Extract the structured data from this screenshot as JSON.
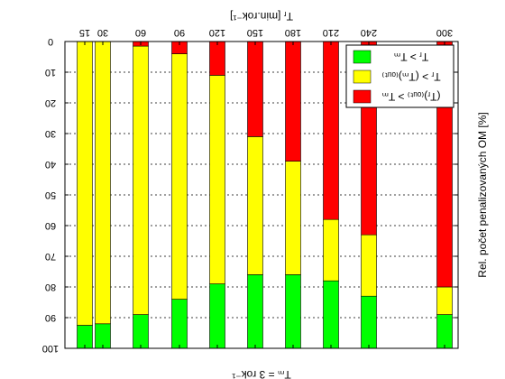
{
  "chart_data": {
    "type": "bar",
    "orientation": "vertical-stacked",
    "mirrored": true,
    "y_inverted": true,
    "grid": "horizontal-dashed",
    "legend_position": "top-right",
    "top_axis_label": "Tᵣ [min.rok⁻¹]",
    "bottom_axis_label": "Tₘ = 3 rok⁻¹",
    "ylabel": "Rel. počet penalizovaných OM [%]",
    "ylim": [
      0,
      100
    ],
    "yticks": [
      0,
      10,
      20,
      30,
      40,
      50,
      60,
      70,
      80,
      90,
      100
    ],
    "categories": [
      "15",
      "30",
      "60",
      "90",
      "120",
      "150",
      "180",
      "210",
      "240",
      "300"
    ],
    "series": [
      {
        "name": "Tᵣ > Tₘ",
        "color": "#00ff00",
        "values": [
          7.5,
          8,
          11,
          16,
          21,
          24,
          24,
          22,
          17,
          11
        ]
      },
      {
        "name": "Tᵣ > (Tₘ)₍ₒᵤₜ₎",
        "color": "#ffff00",
        "values": [
          92.5,
          92,
          87.5,
          80,
          68,
          45,
          37,
          20,
          20,
          9
        ]
      },
      {
        "name": "(Tᵣ)₍ₒᵤₜ₎ > Tₘ",
        "color": "#ff0000",
        "values": [
          0,
          0,
          1.5,
          4,
          11,
          31,
          39,
          58,
          63,
          80
        ]
      }
    ]
  }
}
